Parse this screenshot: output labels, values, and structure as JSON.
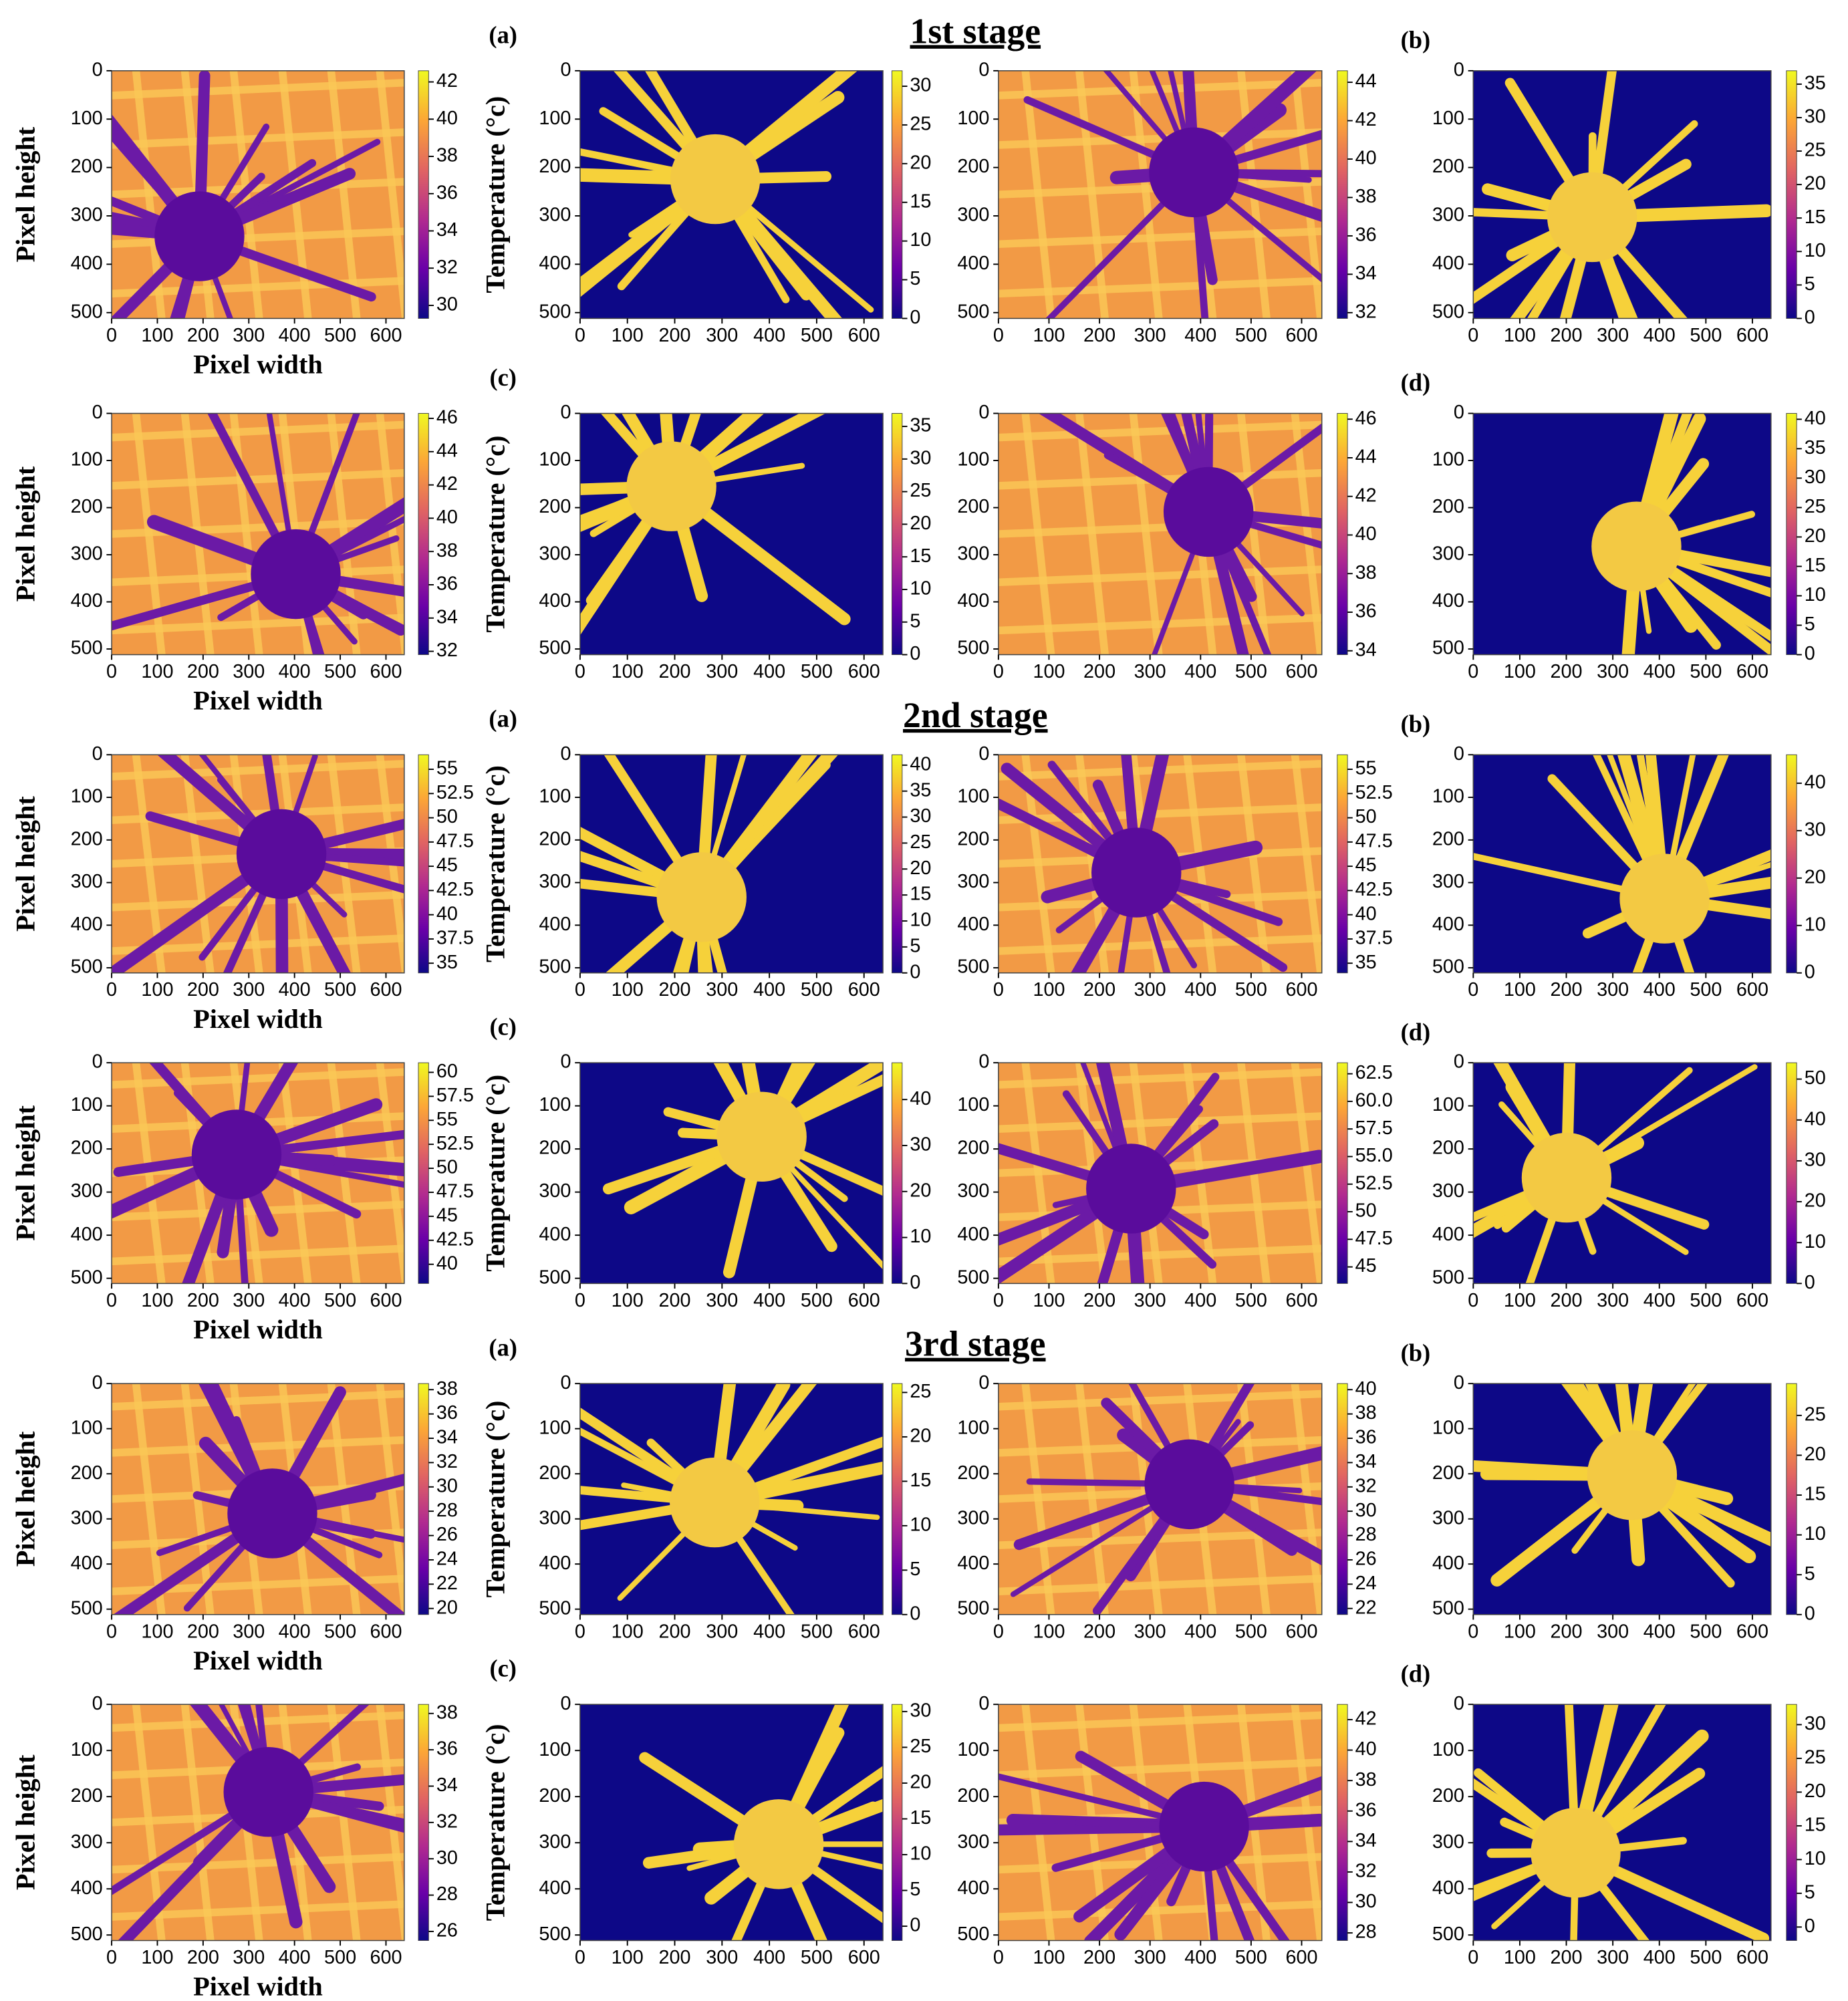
{
  "rows": [
    {
      "stage": "1st stage",
      "left_label": "(a)",
      "right_label": "(b)",
      "panels": [
        {
          "style": "thermal",
          "ylabel": "Pixel height",
          "xlabel": "Pixel width",
          "cbar_label": "Temperature (°c)",
          "xlim": [
            0,
            640
          ],
          "ylim": [
            0,
            512
          ],
          "xticks": [
            0,
            100,
            200,
            300,
            400,
            500,
            600
          ],
          "yticks": [
            0,
            100,
            200,
            300,
            400,
            500
          ],
          "clim": [
            29.3,
            42.6
          ],
          "cbar_ticks": [
            30,
            32,
            34,
            36,
            38,
            40,
            42
          ]
        },
        {
          "style": "mask",
          "xlim": [
            0,
            640
          ],
          "ylim": [
            0,
            512
          ],
          "xticks": [
            0,
            100,
            200,
            300,
            400,
            500,
            600
          ],
          "yticks": [
            0,
            100,
            200,
            300,
            400,
            500
          ],
          "clim": [
            0,
            32
          ],
          "cbar_ticks": [
            0,
            5,
            10,
            15,
            20,
            25,
            30
          ]
        },
        {
          "style": "thermal",
          "xlim": [
            0,
            640
          ],
          "ylim": [
            0,
            512
          ],
          "xticks": [
            0,
            100,
            200,
            300,
            400,
            500,
            600
          ],
          "yticks": [
            0,
            100,
            200,
            300,
            400,
            500
          ],
          "clim": [
            31.7,
            44.6
          ],
          "cbar_ticks": [
            32,
            34,
            36,
            38,
            40,
            42,
            44
          ]
        },
        {
          "style": "mask",
          "xlim": [
            0,
            640
          ],
          "ylim": [
            0,
            512
          ],
          "xticks": [
            0,
            100,
            200,
            300,
            400,
            500,
            600
          ],
          "yticks": [
            0,
            100,
            200,
            300,
            400,
            500
          ],
          "clim": [
            0,
            37
          ],
          "cbar_ticks": [
            0,
            5,
            10,
            15,
            20,
            25,
            30,
            35
          ]
        }
      ]
    },
    {
      "left_label": "(c)",
      "right_label": "(d)",
      "panels": [
        {
          "style": "thermal",
          "ylabel": "Pixel height",
          "xlabel": "Pixel width",
          "cbar_label": "Temperature (°c)",
          "xlim": [
            0,
            640
          ],
          "ylim": [
            0,
            512
          ],
          "xticks": [
            0,
            100,
            200,
            300,
            400,
            500,
            600
          ],
          "yticks": [
            0,
            100,
            200,
            300,
            400,
            500
          ],
          "clim": [
            31.8,
            46.3
          ],
          "cbar_ticks": [
            32,
            34,
            36,
            38,
            40,
            42,
            44,
            46
          ]
        },
        {
          "style": "mask",
          "xlim": [
            0,
            640
          ],
          "ylim": [
            0,
            512
          ],
          "xticks": [
            0,
            100,
            200,
            300,
            400,
            500,
            600
          ],
          "yticks": [
            0,
            100,
            200,
            300,
            400,
            500
          ],
          "clim": [
            0,
            37
          ],
          "cbar_ticks": [
            0,
            5,
            10,
            15,
            20,
            25,
            30,
            35
          ]
        },
        {
          "style": "thermal",
          "xlim": [
            0,
            640
          ],
          "ylim": [
            0,
            512
          ],
          "xticks": [
            0,
            100,
            200,
            300,
            400,
            500,
            600
          ],
          "yticks": [
            0,
            100,
            200,
            300,
            400,
            500
          ],
          "clim": [
            33.8,
            46.3
          ],
          "cbar_ticks": [
            34,
            36,
            38,
            40,
            42,
            44,
            46
          ]
        },
        {
          "style": "mask",
          "xlim": [
            0,
            640
          ],
          "ylim": [
            0,
            512
          ],
          "xticks": [
            0,
            100,
            200,
            300,
            400,
            500,
            600
          ],
          "yticks": [
            0,
            100,
            200,
            300,
            400,
            500
          ],
          "clim": [
            0,
            41
          ],
          "cbar_ticks": [
            0,
            5,
            10,
            15,
            20,
            25,
            30,
            35,
            40
          ]
        }
      ]
    },
    {
      "stage": "2nd stage",
      "left_label": "(a)",
      "right_label": "(b)",
      "panels": [
        {
          "style": "thermal",
          "ylabel": "Pixel height",
          "xlabel": "Pixel width",
          "cbar_label": "Temperature (°c)",
          "xlim": [
            0,
            640
          ],
          "ylim": [
            0,
            512
          ],
          "xticks": [
            0,
            100,
            200,
            300,
            400,
            500,
            600
          ],
          "yticks": [
            0,
            100,
            200,
            300,
            400,
            500
          ],
          "clim": [
            34,
            56.5
          ],
          "cbar_ticks": [
            35,
            37.5,
            40,
            42.5,
            45,
            47.5,
            50,
            52.5,
            55
          ]
        },
        {
          "style": "mask",
          "xlim": [
            0,
            640
          ],
          "ylim": [
            0,
            512
          ],
          "xticks": [
            0,
            100,
            200,
            300,
            400,
            500,
            600
          ],
          "yticks": [
            0,
            100,
            200,
            300,
            400,
            500
          ],
          "clim": [
            0,
            42
          ],
          "cbar_ticks": [
            0,
            5,
            10,
            15,
            20,
            25,
            30,
            35,
            40
          ]
        },
        {
          "style": "thermal",
          "xlim": [
            0,
            640
          ],
          "ylim": [
            0,
            512
          ],
          "xticks": [
            0,
            100,
            200,
            300,
            400,
            500,
            600
          ],
          "yticks": [
            0,
            100,
            200,
            300,
            400,
            500
          ],
          "clim": [
            34,
            56.5
          ],
          "cbar_ticks": [
            35,
            37.5,
            40,
            42.5,
            45,
            47.5,
            50,
            52.5,
            55
          ]
        },
        {
          "style": "mask",
          "xlim": [
            0,
            640
          ],
          "ylim": [
            0,
            512
          ],
          "xticks": [
            0,
            100,
            200,
            300,
            400,
            500,
            600
          ],
          "yticks": [
            0,
            100,
            200,
            300,
            400,
            500
          ],
          "clim": [
            0,
            46
          ],
          "cbar_ticks": [
            0,
            10,
            20,
            30,
            40
          ]
        }
      ]
    },
    {
      "left_label": "(c)",
      "right_label": "(d)",
      "panels": [
        {
          "style": "thermal",
          "ylabel": "Pixel height",
          "xlabel": "Pixel width",
          "cbar_label": "Temperature (°c)",
          "xlim": [
            0,
            640
          ],
          "ylim": [
            0,
            512
          ],
          "xticks": [
            0,
            100,
            200,
            300,
            400,
            500,
            600
          ],
          "yticks": [
            0,
            100,
            200,
            300,
            400,
            500
          ],
          "clim": [
            38,
            61
          ],
          "cbar_ticks": [
            40,
            42.5,
            45,
            47.5,
            50,
            52.5,
            55,
            57.5,
            60
          ]
        },
        {
          "style": "mask",
          "xlim": [
            0,
            640
          ],
          "ylim": [
            0,
            512
          ],
          "xticks": [
            0,
            100,
            200,
            300,
            400,
            500,
            600
          ],
          "yticks": [
            0,
            100,
            200,
            300,
            400,
            500
          ],
          "clim": [
            0,
            48
          ],
          "cbar_ticks": [
            0,
            10,
            20,
            30,
            40
          ]
        },
        {
          "style": "thermal",
          "xlim": [
            0,
            640
          ],
          "ylim": [
            0,
            512
          ],
          "xticks": [
            0,
            100,
            200,
            300,
            400,
            500,
            600
          ],
          "yticks": [
            0,
            100,
            200,
            300,
            400,
            500
          ],
          "clim": [
            43.5,
            63.5
          ],
          "cbar_ticks": [
            45,
            47.5,
            50,
            52.5,
            {
              "value": 55,
              "label": "55.0"
            },
            57.5,
            {
              "value": 60,
              "label": "60.0"
            },
            62.5
          ]
        },
        {
          "style": "mask",
          "xlim": [
            0,
            640
          ],
          "ylim": [
            0,
            512
          ],
          "xticks": [
            0,
            100,
            200,
            300,
            400,
            500,
            600
          ],
          "yticks": [
            0,
            100,
            200,
            300,
            400,
            500
          ],
          "clim": [
            0,
            54
          ],
          "cbar_ticks": [
            0,
            10,
            20,
            30,
            40,
            50
          ]
        }
      ]
    },
    {
      "stage": "3rd stage",
      "left_label": "(a)",
      "right_label": "(b)",
      "panels": [
        {
          "style": "thermal",
          "ylabel": "Pixel height",
          "xlabel": "Pixel width",
          "cbar_label": "Temperature (°c)",
          "xlim": [
            0,
            640
          ],
          "ylim": [
            0,
            512
          ],
          "xticks": [
            0,
            100,
            200,
            300,
            400,
            500,
            600
          ],
          "yticks": [
            0,
            100,
            200,
            300,
            400,
            500
          ],
          "clim": [
            19.5,
            38.5
          ],
          "cbar_ticks": [
            20,
            22,
            24,
            26,
            28,
            30,
            32,
            34,
            36,
            38
          ]
        },
        {
          "style": "mask",
          "xlim": [
            0,
            640
          ],
          "ylim": [
            0,
            512
          ],
          "xticks": [
            0,
            100,
            200,
            300,
            400,
            500,
            600
          ],
          "yticks": [
            0,
            100,
            200,
            300,
            400,
            500
          ],
          "clim": [
            0,
            26
          ],
          "cbar_ticks": [
            0,
            5,
            10,
            15,
            20,
            25
          ]
        },
        {
          "style": "thermal",
          "xlim": [
            0,
            640
          ],
          "ylim": [
            0,
            512
          ],
          "xticks": [
            0,
            100,
            200,
            300,
            400,
            500,
            600
          ],
          "yticks": [
            0,
            100,
            200,
            300,
            400,
            500
          ],
          "clim": [
            21.5,
            40.5
          ],
          "cbar_ticks": [
            22,
            24,
            26,
            28,
            30,
            32,
            34,
            36,
            38,
            40
          ]
        },
        {
          "style": "mask",
          "xlim": [
            0,
            640
          ],
          "ylim": [
            0,
            512
          ],
          "xticks": [
            0,
            100,
            200,
            300,
            400,
            500,
            600
          ],
          "yticks": [
            0,
            100,
            200,
            300,
            400,
            500
          ],
          "clim": [
            0,
            29
          ],
          "cbar_ticks": [
            0,
            5,
            10,
            15,
            20,
            25
          ]
        }
      ]
    },
    {
      "left_label": "(c)",
      "right_label": "(d)",
      "panels": [
        {
          "style": "thermal",
          "ylabel": "Pixel height",
          "xlabel": "Pixel width",
          "cbar_label": "Temperature (°c)",
          "xlim": [
            0,
            640
          ],
          "ylim": [
            0,
            512
          ],
          "xticks": [
            0,
            100,
            200,
            300,
            400,
            500,
            600
          ],
          "yticks": [
            0,
            100,
            200,
            300,
            400,
            500
          ],
          "clim": [
            25.5,
            38.5
          ],
          "cbar_ticks": [
            26,
            28,
            30,
            32,
            34,
            36,
            38
          ]
        },
        {
          "style": "mask",
          "xlim": [
            0,
            640
          ],
          "ylim": [
            0,
            512
          ],
          "xticks": [
            0,
            100,
            200,
            300,
            400,
            500,
            600
          ],
          "yticks": [
            0,
            100,
            200,
            300,
            400,
            500
          ],
          "clim": [
            -2,
            31
          ],
          "cbar_ticks": [
            0,
            5,
            10,
            15,
            20,
            25,
            30
          ]
        },
        {
          "style": "thermal",
          "xlim": [
            0,
            640
          ],
          "ylim": [
            0,
            512
          ],
          "xticks": [
            0,
            100,
            200,
            300,
            400,
            500,
            600
          ],
          "yticks": [
            0,
            100,
            200,
            300,
            400,
            500
          ],
          "clim": [
            27.5,
            43
          ],
          "cbar_ticks": [
            28,
            30,
            32,
            34,
            36,
            38,
            40,
            42
          ]
        },
        {
          "style": "mask",
          "xlim": [
            0,
            640
          ],
          "ylim": [
            0,
            512
          ],
          "xticks": [
            0,
            100,
            200,
            300,
            400,
            500,
            600
          ],
          "yticks": [
            0,
            100,
            200,
            300,
            400,
            500
          ],
          "clim": [
            -2,
            33
          ],
          "cbar_ticks": [
            0,
            5,
            10,
            15,
            20,
            25,
            30
          ]
        }
      ]
    }
  ]
}
